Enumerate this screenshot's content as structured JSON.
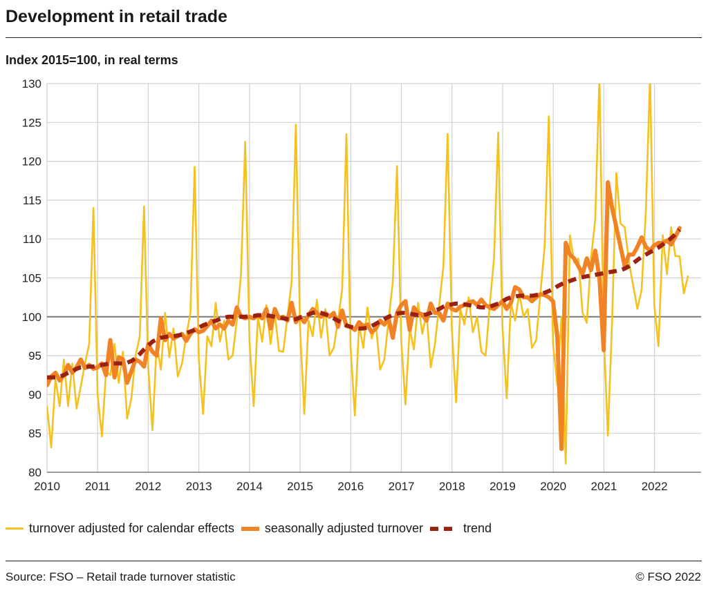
{
  "header": {
    "title": "Development in retail trade",
    "subtitle": "Index 2015=100, in real terms"
  },
  "footer": {
    "source": "Source: FSO – Retail trade turnover statistic",
    "copyright": "© FSO 2022"
  },
  "colors": {
    "calendar": "#f5c11e",
    "seasonal": "#f08326",
    "trend": "#9a2212",
    "grid": "#d0d0d0",
    "reference_line": "#7f7f7f"
  },
  "chart_data": {
    "type": "line",
    "x_unit": "decimal year",
    "xlim": [
      2010,
      2022.92
    ],
    "ylim": [
      80,
      130
    ],
    "x_ticks": [
      2010,
      2011,
      2012,
      2013,
      2014,
      2015,
      2016,
      2017,
      2018,
      2019,
      2020,
      2021,
      2022
    ],
    "y_ticks": [
      80,
      85,
      90,
      95,
      100,
      105,
      110,
      115,
      120,
      125,
      130
    ],
    "reference_value": 100,
    "grid": true,
    "legend_placement": "bottom",
    "series": [
      {
        "name": "turnover adjusted for calendar effects",
        "style": "thin",
        "x_start": 2010.0,
        "x_step": 0.0833,
        "values": [
          88.5,
          83.2,
          92.0,
          88.5,
          94.5,
          88.5,
          94.0,
          88.2,
          91.0,
          94.0,
          96.5,
          114.0,
          90.0,
          84.6,
          93.0,
          92.5,
          96.5,
          91.5,
          95.5,
          86.9,
          89.5,
          95.0,
          97.5,
          114.2,
          93.5,
          85.4,
          96.5,
          93.2,
          100.5,
          94.8,
          98.5,
          92.3,
          94.0,
          97.5,
          100.5,
          119.3,
          94.5,
          87.5,
          97.5,
          96.2,
          101.8,
          96.8,
          99.5,
          94.5,
          95.0,
          99.5,
          105.5,
          122.5,
          97.0,
          88.5,
          100.0,
          96.8,
          101.5,
          96.5,
          100.5,
          95.6,
          95.5,
          100.0,
          104.5,
          124.7,
          98.5,
          87.5,
          99.5,
          97.5,
          102.2,
          97.3,
          101.0,
          95.0,
          96.0,
          99.5,
          103.5,
          123.5,
          96.0,
          87.3,
          99.0,
          96.0,
          101.2,
          97.2,
          99.0,
          93.2,
          94.5,
          99.5,
          104.5,
          119.4,
          97.0,
          88.7,
          98.5,
          95.8,
          101.8,
          97.8,
          100.5,
          93.5,
          96.5,
          101.5,
          106.5,
          123.5,
          98.5,
          89.0,
          101.0,
          99.0,
          102.5,
          98.0,
          100.0,
          95.5,
          95.0,
          101.5,
          107.5,
          123.7,
          98.8,
          89.5,
          101.8,
          99.5,
          103.0,
          100.0,
          101.0,
          96.0,
          97.0,
          103.0,
          109.0,
          125.8,
          96.5,
          91.2,
          100.0,
          81.1,
          110.5,
          107.0,
          107.5,
          100.5,
          99.2,
          107.5,
          112.5,
          131.0,
          98.0,
          84.7,
          99.5,
          118.5,
          112.0,
          111.5,
          107.0,
          104.0,
          101.0,
          103.5,
          113.5,
          131.0,
          101.5,
          96.2,
          110.5,
          105.5,
          111.5,
          107.8,
          107.8,
          103.0,
          105.2
        ]
      },
      {
        "name": "seasonally adjusted turnover",
        "style": "thick",
        "x_start": 2010.0,
        "x_step": 0.0833,
        "values": [
          91.2,
          92.3,
          92.8,
          91.8,
          92.5,
          93.8,
          92.8,
          93.5,
          94.5,
          93.4,
          93.8,
          93.3,
          93.5,
          94.0,
          92.5,
          97.0,
          92.2,
          94.8,
          94.5,
          91.5,
          93.0,
          94.5,
          94.2,
          93.6,
          96.5,
          95.5,
          95.0,
          99.8,
          97.0,
          97.8,
          97.2,
          97.5,
          97.8,
          96.9,
          97.8,
          98.4,
          98.0,
          98.2,
          98.8,
          99.5,
          98.5,
          99.0,
          98.5,
          99.5,
          99.0,
          101.2,
          100.0,
          99.8,
          100.0,
          99.8,
          100.2,
          99.8,
          101.0,
          98.5,
          101.0,
          99.8,
          100.0,
          99.5,
          101.8,
          99.3,
          100.0,
          99.3,
          100.2,
          101.0,
          100.5,
          100.0,
          100.5,
          100.0,
          100.5,
          98.7,
          100.8,
          98.8,
          98.7,
          98.3,
          99.3,
          98.8,
          99.0,
          98.0,
          98.5,
          99.5,
          99.0,
          99.8,
          97.3,
          100.5,
          101.5,
          102.0,
          98.3,
          101.2,
          100.5,
          100.3,
          99.5,
          101.7,
          100.5,
          100.5,
          99.5,
          101.7,
          101.0,
          100.8,
          101.3,
          101.5,
          101.8,
          102.0,
          101.5,
          102.2,
          101.5,
          101.2,
          101.0,
          101.5,
          102.0,
          101.0,
          101.8,
          103.8,
          103.5,
          102.5,
          102.5,
          102.0,
          102.5,
          102.9,
          102.8,
          102.5,
          102.0,
          97.5,
          83.0,
          109.5,
          108.0,
          107.5,
          106.5,
          105.5,
          107.5,
          106.0,
          108.5,
          105.0,
          95.7,
          117.3,
          114.0,
          111.5,
          109.0,
          106.5,
          108.0,
          108.0,
          109.0,
          110.2,
          109.0,
          108.5,
          109.2,
          109.5,
          109.5,
          109.8,
          109.3,
          110.3,
          111.4
        ]
      },
      {
        "name": "trend",
        "style": "dashed",
        "x_start": 2010.0,
        "x_step": 0.0833,
        "values": [
          92.2,
          92.2,
          92.2,
          92.3,
          92.5,
          92.8,
          93.0,
          93.3,
          93.5,
          93.5,
          93.6,
          93.6,
          93.7,
          93.8,
          93.9,
          94.0,
          94.0,
          94.0,
          94.0,
          94.1,
          94.3,
          94.7,
          95.2,
          95.8,
          96.3,
          96.8,
          97.1,
          97.3,
          97.4,
          97.5,
          97.5,
          97.6,
          97.7,
          97.9,
          98.1,
          98.3,
          98.6,
          98.9,
          99.1,
          99.3,
          99.5,
          99.7,
          99.9,
          100.0,
          100.0,
          100.0,
          100.0,
          100.0,
          100.1,
          100.1,
          100.2,
          100.2,
          100.2,
          100.1,
          100.0,
          99.9,
          99.8,
          99.7,
          99.6,
          99.7,
          99.9,
          100.1,
          100.3,
          100.5,
          100.6,
          100.5,
          100.3,
          100.1,
          99.8,
          99.5,
          99.2,
          98.9,
          98.7,
          98.6,
          98.5,
          98.5,
          98.6,
          98.8,
          99.1,
          99.4,
          99.7,
          100.0,
          100.2,
          100.4,
          100.5,
          100.5,
          100.4,
          100.3,
          100.2,
          100.2,
          100.3,
          100.5,
          100.8,
          101.0,
          101.3,
          101.5,
          101.6,
          101.7,
          101.7,
          101.6,
          101.5,
          101.4,
          101.3,
          101.2,
          101.2,
          101.3,
          101.5,
          101.7,
          102.0,
          102.3,
          102.5,
          102.6,
          102.7,
          102.7,
          102.7,
          102.7,
          102.8,
          102.9,
          103.1,
          103.3,
          103.6,
          103.9,
          104.2,
          104.4,
          104.6,
          104.8,
          105.0,
          105.1,
          105.2,
          105.3,
          105.4,
          105.5,
          105.6,
          105.7,
          105.8,
          105.9,
          106.0,
          106.2,
          106.5,
          106.9,
          107.3,
          107.7,
          108.0,
          108.3,
          108.6,
          108.9,
          109.3,
          109.7,
          110.1,
          110.6,
          111.2
        ]
      }
    ]
  }
}
